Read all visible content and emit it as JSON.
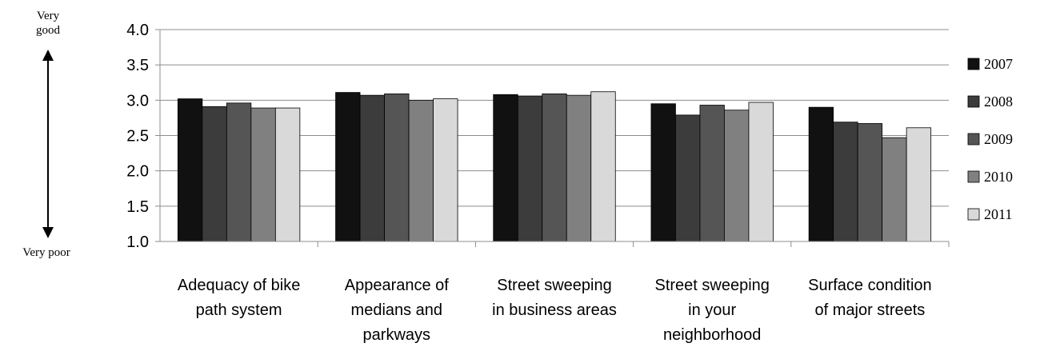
{
  "chart_data": {
    "type": "bar",
    "categories": [
      [
        "Adequacy of bike",
        "path system"
      ],
      [
        "Appearance of",
        "medians and",
        "parkways"
      ],
      [
        "Street sweeping",
        "in business areas"
      ],
      [
        "Street sweeping",
        "in your",
        "neighborhood"
      ],
      [
        "Surface condition",
        "of major streets"
      ]
    ],
    "series": [
      {
        "name": "2007",
        "color": "#111111",
        "values": [
          3.02,
          3.11,
          3.08,
          2.95,
          2.9
        ]
      },
      {
        "name": "2008",
        "color": "#3c3c3c",
        "values": [
          2.91,
          3.07,
          3.06,
          2.79,
          2.69
        ]
      },
      {
        "name": "2009",
        "color": "#555555",
        "values": [
          2.96,
          3.09,
          3.09,
          2.93,
          2.67
        ]
      },
      {
        "name": "2010",
        "color": "#808080",
        "values": [
          2.89,
          3.0,
          3.07,
          2.86,
          2.47
        ]
      },
      {
        "name": "2011",
        "color": "#d9d9d9",
        "values": [
          2.89,
          3.02,
          3.12,
          2.97,
          2.61
        ]
      }
    ],
    "ylim": [
      1.0,
      4.0
    ],
    "yticks": [
      "1.0",
      "1.5",
      "2.0",
      "2.5",
      "3.0",
      "3.5",
      "4.0"
    ],
    "grid": true,
    "legend_position": "right",
    "scale_labels": {
      "top": [
        "Very",
        "good"
      ],
      "bottom": "Very poor"
    }
  }
}
